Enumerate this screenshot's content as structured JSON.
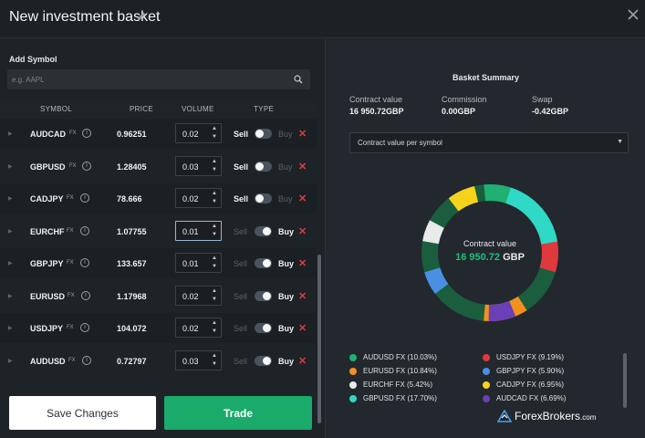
{
  "header": {
    "title": "New investment basket"
  },
  "left": {
    "add_symbol_label": "Add Symbol",
    "search_placeholder": "e.g. AAPL",
    "columns": [
      "SYMBOL",
      "PRICE",
      "VOLUME",
      "TYPE"
    ],
    "rows": [
      {
        "symbol": "AUDCAD",
        "tag": "FX",
        "price": "0.96251",
        "volume": "0.02",
        "sell": "Sell",
        "buy": "Buy",
        "type": "sell"
      },
      {
        "symbol": "GBPUSD",
        "tag": "FX",
        "price": "1.28405",
        "volume": "0.03",
        "sell": "Sell",
        "buy": "Buy",
        "type": "sell"
      },
      {
        "symbol": "CADJPY",
        "tag": "FX",
        "price": "78.666",
        "volume": "0.02",
        "sell": "Sell",
        "buy": "Buy",
        "type": "sell"
      },
      {
        "symbol": "EURCHF",
        "tag": "FX",
        "price": "1.07755",
        "volume": "0.01",
        "sell": "Sell",
        "buy": "Buy",
        "type": "buy"
      },
      {
        "symbol": "GBPJPY",
        "tag": "FX",
        "price": "133.657",
        "volume": "0.01",
        "sell": "Sell",
        "buy": "Buy",
        "type": "buy"
      },
      {
        "symbol": "EURUSD",
        "tag": "FX",
        "price": "1.17968",
        "volume": "0.02",
        "sell": "Sell",
        "buy": "Buy",
        "type": "buy"
      },
      {
        "symbol": "USDJPY",
        "tag": "FX",
        "price": "104.072",
        "volume": "0.02",
        "sell": "Sell",
        "buy": "Buy",
        "type": "buy"
      },
      {
        "symbol": "AUDUSD",
        "tag": "FX",
        "price": "0.72797",
        "volume": "0.03",
        "sell": "Sell",
        "buy": "Buy",
        "type": "buy"
      }
    ],
    "save_button": "Save Changes",
    "trade_button": "Trade"
  },
  "summary": {
    "title": "Basket Summary",
    "contract_label": "Contract value",
    "contract_value": "16 950.72GBP",
    "commission_label": "Commission",
    "commission_value": "0.00GBP",
    "swap_label": "Swap",
    "swap_value": "-0.42GBP",
    "dropdown_selected": "Contract value per symbol",
    "donut_label": "Contract value",
    "donut_number": "16 950.72",
    "donut_currency": "GBP",
    "legend": [
      {
        "label": "AUDUSD FX (10.03%)",
        "color": "#1fb072",
        "pct": 10.03
      },
      {
        "label": "USDJPY FX (9.19%)",
        "color": "#e0393c",
        "pct": 9.19
      },
      {
        "label": "EURUSD FX (10.84%)",
        "color": "#f4901e",
        "pct": 10.84
      },
      {
        "label": "GBPJPY FX (5.90%)",
        "color": "#4a90e2",
        "pct": 5.9
      },
      {
        "label": "EURCHF FX (5.42%)",
        "color": "#e8eaec",
        "pct": 5.42
      },
      {
        "label": "CADJPY FX (6.95%)",
        "color": "#f5d31d",
        "pct": 6.95
      },
      {
        "label": "GBPUSD FX (17.70%)",
        "color": "#2fd9c6",
        "pct": 17.7
      },
      {
        "label": "AUDCAD FX (6.69%)",
        "color": "#6b3fb8",
        "pct": 6.69
      }
    ]
  },
  "brand": {
    "name": "ForexBrokers",
    "suffix": ".com"
  }
}
